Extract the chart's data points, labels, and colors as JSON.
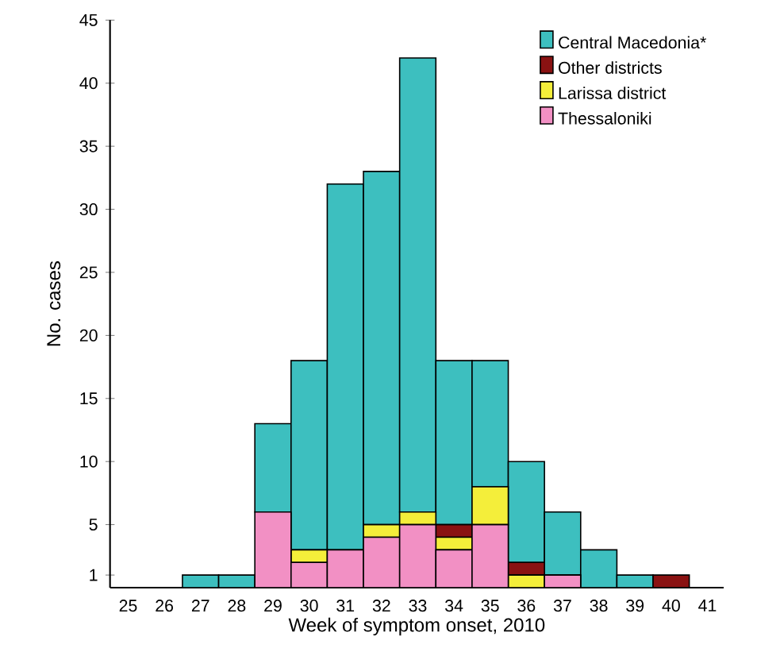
{
  "chart_data": {
    "type": "bar",
    "stacked": true,
    "xlabel": "Week of symptom onset, 2010",
    "ylabel": "No. cases",
    "categories": [
      "25",
      "26",
      "27",
      "28",
      "29",
      "30",
      "31",
      "32",
      "33",
      "34",
      "35",
      "36",
      "37",
      "38",
      "39",
      "40",
      "41"
    ],
    "series": [
      {
        "name": "Thessaloniki",
        "color": "#f290c4",
        "values": [
          0,
          0,
          0,
          0,
          6,
          2,
          3,
          4,
          5,
          3,
          5,
          0,
          1,
          0,
          0,
          0,
          0
        ]
      },
      {
        "name": "Larissa district",
        "color": "#f4ee3a",
        "values": [
          0,
          0,
          0,
          0,
          0,
          1,
          0,
          1,
          1,
          1,
          3,
          1,
          0,
          0,
          0,
          0,
          0
        ]
      },
      {
        "name": "Other districts",
        "color": "#8a1212",
        "values": [
          0,
          0,
          0,
          0,
          0,
          0,
          0,
          0,
          0,
          1,
          0,
          1,
          0,
          0,
          0,
          1,
          0
        ]
      },
      {
        "name": "Central Macedonia*",
        "color": "#3dbfbf",
        "values": [
          0,
          0,
          1,
          1,
          7,
          15,
          29,
          28,
          36,
          13,
          10,
          8,
          5,
          3,
          1,
          0,
          0
        ]
      }
    ],
    "ylim": [
      0,
      45
    ],
    "yticks": [
      1,
      5,
      10,
      15,
      20,
      25,
      30,
      35,
      40,
      45
    ],
    "legend": "top right"
  }
}
